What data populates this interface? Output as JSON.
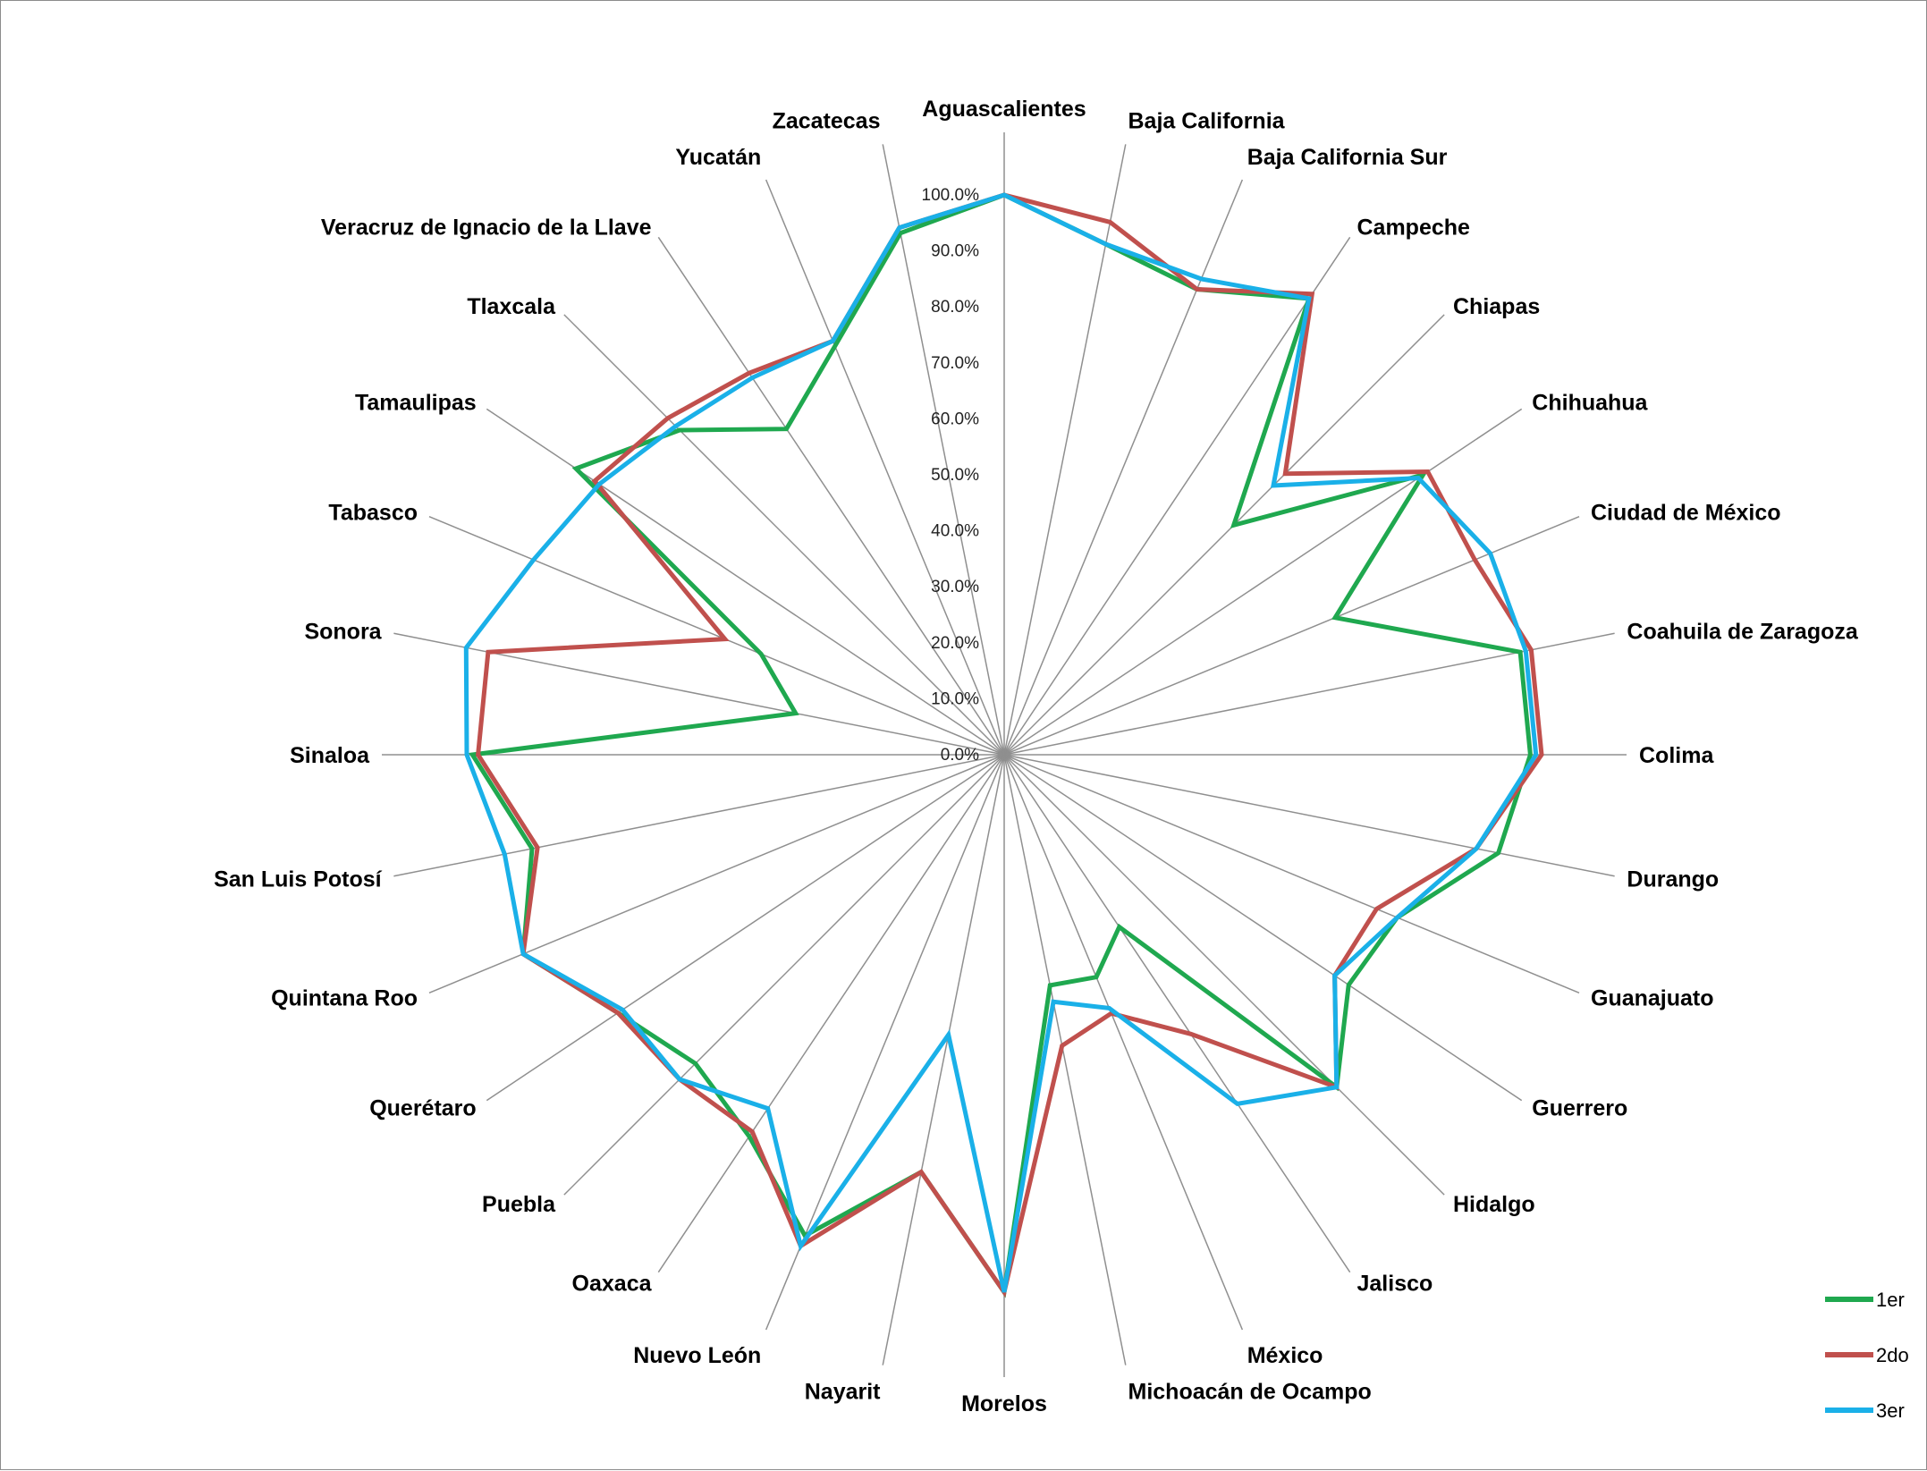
{
  "chart_data": {
    "type": "radar",
    "categories": [
      "Aguascalientes",
      "Baja California",
      "Baja California Sur",
      "Campeche",
      "Chiapas",
      "Chihuahua",
      "Ciudad de México",
      "Coahuila de Zaragoza",
      "Colima",
      "Durango",
      "Guanajuato",
      "Guerrero",
      "Hidalgo",
      "Jalisco",
      "México",
      "Michoacán de Ocampo",
      "Morelos",
      "Nayarit",
      "Nuevo León",
      "Oaxaca",
      "Puebla",
      "Querétaro",
      "Quintana Roo",
      "San Luis Potosí",
      "Sinaloa",
      "Sonora",
      "Tabasco",
      "Tamaulipas",
      "Tlaxcala",
      "Veracruz de Ignacio de la Llave",
      "Yucatán",
      "Zacatecas"
    ],
    "ticks": [
      "0.0%",
      "10.0%",
      "20.0%",
      "30.0%",
      "40.0%",
      "50.0%",
      "60.0%",
      "70.0%",
      "80.0%",
      "90.0%",
      "100.0%"
    ],
    "rmin": 0,
    "rmax": 100,
    "legend_position": "bottom-right",
    "series": [
      {
        "name": "1er",
        "color": "#1fa84f",
        "values": [
          100,
          93,
          90,
          98,
          58,
          90,
          64,
          94,
          94,
          90,
          76,
          74,
          84,
          37,
          43,
          42,
          96,
          76,
          93,
          82,
          78,
          83,
          93,
          86,
          95,
          38,
          47,
          92,
          82,
          70,
          79,
          95
        ]
      },
      {
        "name": "2do",
        "color": "#c0504d",
        "values": [
          100,
          97,
          90,
          99,
          71,
          91,
          91,
          96,
          96,
          86,
          72,
          71,
          84,
          60,
          50,
          53,
          96,
          76,
          95,
          81,
          82,
          83,
          93,
          85,
          94,
          94,
          54,
          88,
          85,
          82,
          80,
          96
        ]
      },
      {
        "name": "3er",
        "color": "#1ab0e8",
        "values": [
          100,
          93,
          92,
          98,
          68,
          89,
          94,
          95,
          95,
          86,
          76,
          71,
          84,
          75,
          49,
          45,
          96,
          51,
          95,
          76,
          82,
          82,
          93,
          91,
          96,
          98,
          91,
          87,
          83,
          81,
          80,
          96
        ]
      }
    ]
  }
}
